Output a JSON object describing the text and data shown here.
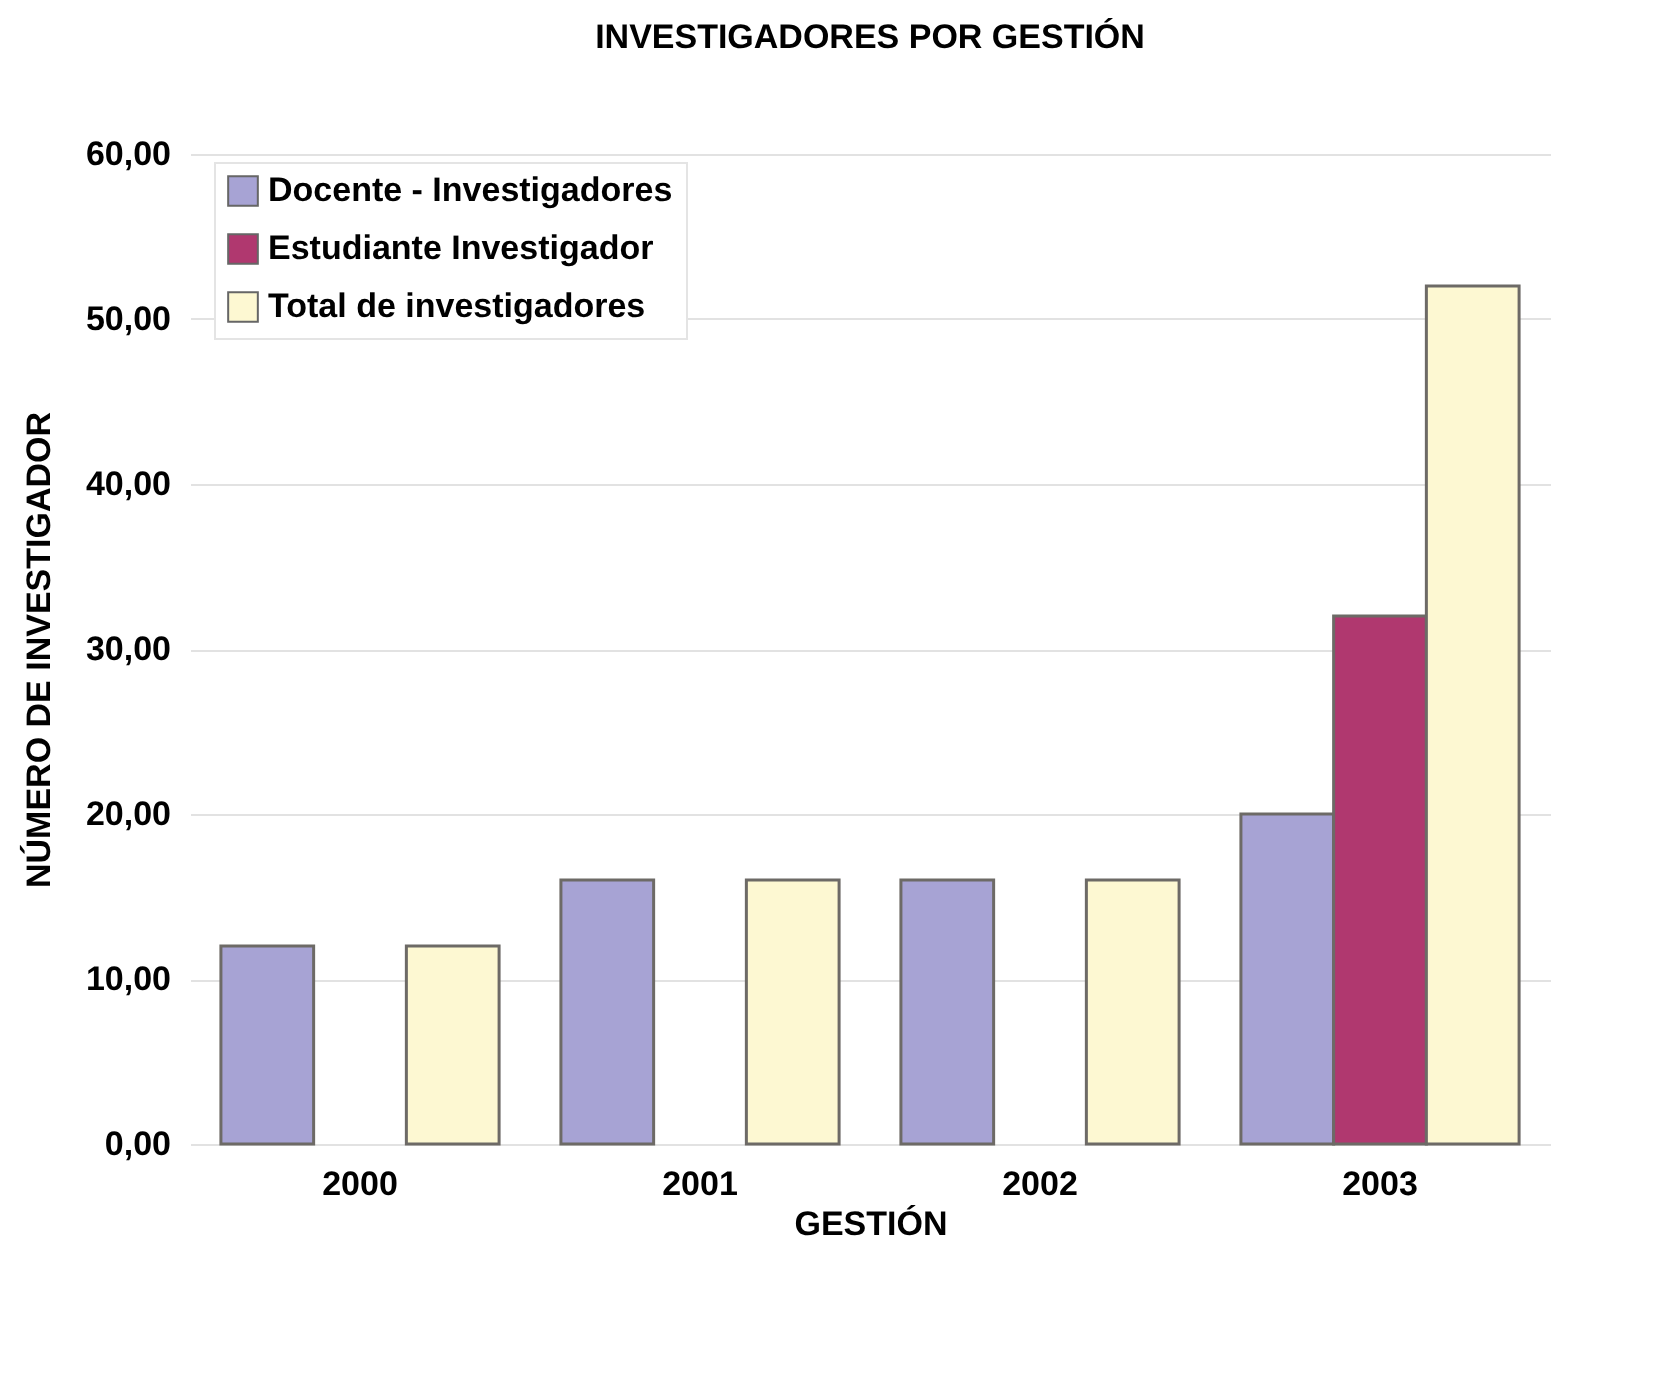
{
  "chart_data": {
    "type": "bar",
    "title": "INVESTIGADORES POR GESTIÓN",
    "xlabel": "GESTIÓN",
    "ylabel": "NÚMERO DE INVESTIGADOR",
    "categories": [
      "2000",
      "2001",
      "2002",
      "2003"
    ],
    "series": [
      {
        "name": "Docente - Investigadores",
        "color": "#a7a3d4",
        "values": [
          12,
          16,
          16,
          20
        ]
      },
      {
        "name": "Estudiante Investigador",
        "color": "#b0386f",
        "values": [
          null,
          null,
          null,
          32
        ]
      },
      {
        "name": "Total de investigadores",
        "color": "#fdf8d2",
        "values": [
          12,
          16,
          16,
          52
        ]
      }
    ],
    "ylim": [
      0,
      60
    ],
    "yticks": [
      {
        "value": 0,
        "label": "0,00"
      },
      {
        "value": 10,
        "label": "10,00"
      },
      {
        "value": 20,
        "label": "20,00"
      },
      {
        "value": 30,
        "label": "30,00"
      },
      {
        "value": 40,
        "label": "40,00"
      },
      {
        "value": 50,
        "label": "50,00"
      },
      {
        "value": 60,
        "label": "60,00"
      }
    ],
    "grid": "y",
    "legend": "top left"
  }
}
